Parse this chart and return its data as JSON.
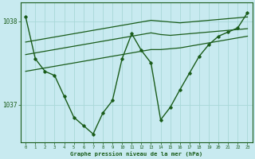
{
  "xlabel": "Graphe pression niveau de la mer (hPa)",
  "background_color": "#c8eaf0",
  "grid_color": "#a8d8d8",
  "line_color": "#1a5c1a",
  "x_values": [
    0,
    1,
    2,
    3,
    4,
    5,
    6,
    7,
    8,
    9,
    10,
    11,
    12,
    13,
    14,
    15,
    16,
    17,
    18,
    19,
    20,
    21,
    22,
    23
  ],
  "pressure_main": [
    1038.05,
    1037.55,
    1037.4,
    1037.35,
    1037.1,
    1036.85,
    1036.75,
    1036.65,
    1036.9,
    1037.05,
    1037.55,
    1037.85,
    1037.65,
    1037.5,
    1036.82,
    1036.97,
    1037.18,
    1037.38,
    1037.58,
    1037.72,
    1037.82,
    1037.87,
    1037.92,
    1038.1
  ],
  "trend1": [
    1037.75,
    1037.77,
    1037.79,
    1037.81,
    1037.83,
    1037.85,
    1037.87,
    1037.89,
    1037.91,
    1037.93,
    1037.95,
    1037.97,
    1037.99,
    1038.01,
    1038.0,
    1037.99,
    1037.98,
    1037.99,
    1038.0,
    1038.01,
    1038.02,
    1038.03,
    1038.04,
    1038.05
  ],
  "trend2": [
    1037.6,
    1037.62,
    1037.64,
    1037.66,
    1037.68,
    1037.7,
    1037.72,
    1037.74,
    1037.76,
    1037.78,
    1037.8,
    1037.82,
    1037.84,
    1037.86,
    1037.84,
    1037.83,
    1037.84,
    1037.85,
    1037.86,
    1037.87,
    1037.88,
    1037.89,
    1037.9,
    1037.91
  ],
  "trend3": [
    1037.4,
    1037.42,
    1037.44,
    1037.46,
    1037.48,
    1037.5,
    1037.52,
    1037.54,
    1037.56,
    1037.58,
    1037.6,
    1037.62,
    1037.64,
    1037.66,
    1037.66,
    1037.67,
    1037.68,
    1037.7,
    1037.72,
    1037.74,
    1037.76,
    1037.78,
    1037.8,
    1037.82
  ],
  "ylim_min": 1036.55,
  "ylim_max": 1038.22,
  "yticks": [
    1037,
    1038
  ],
  "xticks": [
    0,
    1,
    2,
    3,
    4,
    5,
    6,
    7,
    8,
    9,
    10,
    11,
    12,
    13,
    14,
    15,
    16,
    17,
    18,
    19,
    20,
    21,
    22,
    23
  ]
}
